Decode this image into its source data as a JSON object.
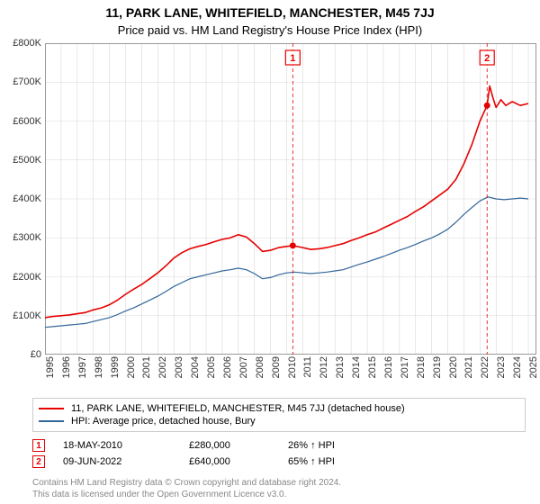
{
  "title": "11, PARK LANE, WHITEFIELD, MANCHESTER, M45 7JJ",
  "subtitle": "Price paid vs. HM Land Registry's House Price Index (HPI)",
  "chart": {
    "type": "line",
    "background_color": "#ffffff",
    "grid_color": "#d9d9d9",
    "grid_strong_color": "#999999",
    "x_years": [
      1995,
      1996,
      1997,
      1998,
      1999,
      2000,
      2001,
      2002,
      2003,
      2004,
      2005,
      2006,
      2007,
      2008,
      2009,
      2010,
      2011,
      2012,
      2013,
      2014,
      2015,
      2016,
      2017,
      2018,
      2019,
      2020,
      2021,
      2022,
      2023,
      2024,
      2025
    ],
    "xlim": [
      1995,
      2025.5
    ],
    "ylim": [
      0,
      800000
    ],
    "ytick_step": 100000,
    "ytick_labels": [
      "£0",
      "£100K",
      "£200K",
      "£300K",
      "£400K",
      "£500K",
      "£600K",
      "£700K",
      "£800K"
    ],
    "label_fontsize": 11,
    "series": [
      {
        "name": "11, PARK LANE, WHITEFIELD, MANCHESTER, M45 7JJ (detached house)",
        "color": "#e60000",
        "line_width": 1.6,
        "xy": [
          [
            1995,
            95000
          ],
          [
            1995.5,
            98000
          ],
          [
            1996,
            100000
          ],
          [
            1996.5,
            102000
          ],
          [
            1997,
            105000
          ],
          [
            1997.5,
            108000
          ],
          [
            1998,
            115000
          ],
          [
            1998.5,
            120000
          ],
          [
            1999,
            128000
          ],
          [
            1999.5,
            140000
          ],
          [
            2000,
            155000
          ],
          [
            2000.5,
            168000
          ],
          [
            2001,
            180000
          ],
          [
            2001.5,
            195000
          ],
          [
            2002,
            210000
          ],
          [
            2002.5,
            228000
          ],
          [
            2003,
            248000
          ],
          [
            2003.5,
            262000
          ],
          [
            2004,
            272000
          ],
          [
            2004.5,
            278000
          ],
          [
            2005,
            283000
          ],
          [
            2005.5,
            290000
          ],
          [
            2006,
            296000
          ],
          [
            2006.5,
            300000
          ],
          [
            2007,
            308000
          ],
          [
            2007.5,
            302000
          ],
          [
            2008,
            285000
          ],
          [
            2008.5,
            265000
          ],
          [
            2009,
            268000
          ],
          [
            2009.5,
            275000
          ],
          [
            2010,
            278000
          ],
          [
            2010.38,
            280000
          ],
          [
            2011,
            275000
          ],
          [
            2011.5,
            270000
          ],
          [
            2012,
            272000
          ],
          [
            2012.5,
            275000
          ],
          [
            2013,
            280000
          ],
          [
            2013.5,
            285000
          ],
          [
            2014,
            293000
          ],
          [
            2014.5,
            300000
          ],
          [
            2015,
            308000
          ],
          [
            2015.5,
            315000
          ],
          [
            2016,
            325000
          ],
          [
            2016.5,
            335000
          ],
          [
            2017,
            345000
          ],
          [
            2017.5,
            355000
          ],
          [
            2018,
            368000
          ],
          [
            2018.5,
            380000
          ],
          [
            2019,
            395000
          ],
          [
            2019.5,
            410000
          ],
          [
            2020,
            425000
          ],
          [
            2020.5,
            450000
          ],
          [
            2021,
            490000
          ],
          [
            2021.5,
            540000
          ],
          [
            2022,
            600000
          ],
          [
            2022.44,
            640000
          ],
          [
            2022.6,
            690000
          ],
          [
            2022.8,
            660000
          ],
          [
            2023,
            635000
          ],
          [
            2023.3,
            655000
          ],
          [
            2023.6,
            640000
          ],
          [
            2024,
            650000
          ],
          [
            2024.5,
            640000
          ],
          [
            2025,
            645000
          ]
        ]
      },
      {
        "name": "HPI: Average price, detached house, Bury",
        "color": "#336699",
        "line_width": 1.2,
        "xy": [
          [
            1995,
            70000
          ],
          [
            1995.5,
            72000
          ],
          [
            1996,
            74000
          ],
          [
            1996.5,
            76000
          ],
          [
            1997,
            78000
          ],
          [
            1997.5,
            80000
          ],
          [
            1998,
            85000
          ],
          [
            1998.5,
            90000
          ],
          [
            1999,
            95000
          ],
          [
            1999.5,
            103000
          ],
          [
            2000,
            112000
          ],
          [
            2000.5,
            120000
          ],
          [
            2001,
            130000
          ],
          [
            2001.5,
            140000
          ],
          [
            2002,
            150000
          ],
          [
            2002.5,
            162000
          ],
          [
            2003,
            175000
          ],
          [
            2003.5,
            185000
          ],
          [
            2004,
            195000
          ],
          [
            2004.5,
            200000
          ],
          [
            2005,
            205000
          ],
          [
            2005.5,
            210000
          ],
          [
            2006,
            215000
          ],
          [
            2006.5,
            218000
          ],
          [
            2007,
            222000
          ],
          [
            2007.5,
            218000
          ],
          [
            2008,
            208000
          ],
          [
            2008.5,
            195000
          ],
          [
            2009,
            198000
          ],
          [
            2009.5,
            205000
          ],
          [
            2010,
            210000
          ],
          [
            2010.5,
            212000
          ],
          [
            2011,
            210000
          ],
          [
            2011.5,
            208000
          ],
          [
            2012,
            210000
          ],
          [
            2012.5,
            212000
          ],
          [
            2013,
            215000
          ],
          [
            2013.5,
            218000
          ],
          [
            2014,
            225000
          ],
          [
            2014.5,
            232000
          ],
          [
            2015,
            238000
          ],
          [
            2015.5,
            245000
          ],
          [
            2016,
            252000
          ],
          [
            2016.5,
            260000
          ],
          [
            2017,
            268000
          ],
          [
            2017.5,
            275000
          ],
          [
            2018,
            283000
          ],
          [
            2018.5,
            292000
          ],
          [
            2019,
            300000
          ],
          [
            2019.5,
            310000
          ],
          [
            2020,
            322000
          ],
          [
            2020.5,
            340000
          ],
          [
            2021,
            360000
          ],
          [
            2021.5,
            378000
          ],
          [
            2022,
            395000
          ],
          [
            2022.5,
            405000
          ],
          [
            2023,
            400000
          ],
          [
            2023.5,
            398000
          ],
          [
            2024,
            400000
          ],
          [
            2024.5,
            402000
          ],
          [
            2025,
            400000
          ]
        ]
      }
    ],
    "transaction_markers": [
      {
        "n": "1",
        "x": 2010.38,
        "y": 280000,
        "color": "#e60000"
      },
      {
        "n": "2",
        "x": 2022.44,
        "y": 640000,
        "color": "#e60000"
      }
    ]
  },
  "legend": {
    "border_color": "#cccccc",
    "rows": [
      {
        "color": "#e60000",
        "label": "11, PARK LANE, WHITEFIELD, MANCHESTER, M45 7JJ (detached house)"
      },
      {
        "color": "#336699",
        "label": "HPI: Average price, detached house, Bury"
      }
    ]
  },
  "transactions": [
    {
      "n": "1",
      "color": "#e60000",
      "date": "18-MAY-2010",
      "price": "£280,000",
      "pct": "26% ↑ HPI"
    },
    {
      "n": "2",
      "color": "#e60000",
      "date": "09-JUN-2022",
      "price": "£640,000",
      "pct": "65% ↑ HPI"
    }
  ],
  "footer": {
    "line1": "Contains HM Land Registry data © Crown copyright and database right 2024.",
    "line2": "This data is licensed under the Open Government Licence v3.0."
  }
}
